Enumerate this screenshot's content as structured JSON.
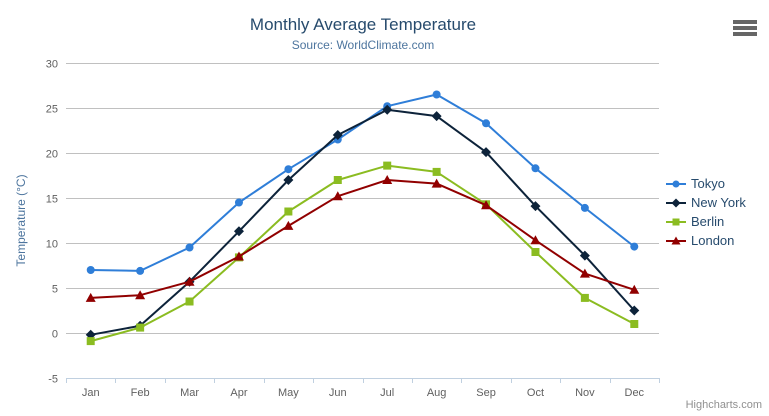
{
  "chart_data": {
    "type": "line",
    "title": "Monthly Average Temperature",
    "subtitle": "Source: WorldClimate.com",
    "xlabel": "",
    "ylabel": "Temperature (°C)",
    "categories": [
      "Jan",
      "Feb",
      "Mar",
      "Apr",
      "May",
      "Jun",
      "Jul",
      "Aug",
      "Sep",
      "Oct",
      "Nov",
      "Dec"
    ],
    "ylim": [
      -5,
      30
    ],
    "yticks": [
      -5,
      0,
      5,
      10,
      15,
      20,
      25,
      30
    ],
    "grid": true,
    "legend_position": "right",
    "series": [
      {
        "name": "Tokyo",
        "color": "#2f7ed8",
        "marker": "circle",
        "values": [
          7.0,
          6.9,
          9.5,
          14.5,
          18.2,
          21.5,
          25.2,
          26.5,
          23.3,
          18.3,
          13.9,
          9.6
        ]
      },
      {
        "name": "New York",
        "color": "#0d233a",
        "marker": "diamond",
        "values": [
          -0.2,
          0.8,
          5.7,
          11.3,
          17.0,
          22.0,
          24.8,
          24.1,
          20.1,
          14.1,
          8.6,
          2.5
        ]
      },
      {
        "name": "Berlin",
        "color": "#8bbc21",
        "marker": "square",
        "values": [
          -0.9,
          0.6,
          3.5,
          8.4,
          13.5,
          17.0,
          18.6,
          17.9,
          14.3,
          9.0,
          3.9,
          1.0
        ]
      },
      {
        "name": "London",
        "color": "#910000",
        "marker": "triangle",
        "values": [
          3.9,
          4.2,
          5.7,
          8.5,
          11.9,
          15.2,
          17.0,
          16.6,
          14.2,
          10.3,
          6.6,
          4.8
        ]
      }
    ]
  },
  "theme": {
    "title_color": "#274b6d",
    "subtitle_color": "#4d759e",
    "axis_title_color": "#4d759e",
    "axis_label_color": "#606060",
    "grid_color": "#c0c0c0",
    "axis_line_color": "#c0d0e0",
    "legend_text_color": "#274b6d",
    "credits_color": "#909090",
    "menu_icon_color": "#666666"
  },
  "credits": {
    "label": "Highcharts.com"
  },
  "menu": {
    "icon": "hamburger-export-menu"
  }
}
